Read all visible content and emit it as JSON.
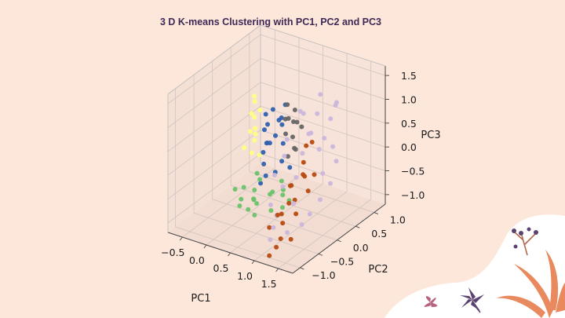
{
  "slide": {
    "title": "3 D K-means Clustering with PC1, PC2 and PC3",
    "background": "#fde6da",
    "title_color": "#3f2a56"
  },
  "chart_data": {
    "type": "scatter",
    "projection": "3d",
    "title": "",
    "xlabel": "PC1",
    "ylabel": "PC2",
    "zlabel": "PC3",
    "xticks": [
      "−0.5",
      "0.0",
      "0.5",
      "1.0",
      "1.5"
    ],
    "yticks": [
      "−1.0",
      "−0.5",
      "0.0",
      "0.5",
      "1.0"
    ],
    "zticks": [
      "−1.0",
      "−0.5",
      "0.0",
      "0.5",
      "1.0",
      "1.5"
    ],
    "xlim": [
      -0.8,
      1.8
    ],
    "ylim": [
      -1.2,
      1.3
    ],
    "zlim": [
      -1.2,
      1.7
    ],
    "grid": true,
    "legend": "none",
    "series": [
      {
        "color": "#ffff80",
        "points": [
          [
            -0.6,
            0.8,
            0.2
          ],
          [
            -0.55,
            0.7,
            -0.1
          ],
          [
            -0.62,
            0.9,
            0.5
          ],
          [
            -0.5,
            0.75,
            -0.3
          ],
          [
            -0.58,
            0.85,
            0.1
          ],
          [
            -0.48,
            0.65,
            -0.5
          ],
          [
            -0.65,
            0.95,
            0.35
          ],
          [
            -0.52,
            0.8,
            -0.2
          ],
          [
            -0.45,
            0.7,
            0.0
          ],
          [
            -0.6,
            0.6,
            -0.4
          ],
          [
            -0.5,
            0.9,
            0.25
          ],
          [
            -0.42,
            0.78,
            -0.6
          ]
        ]
      },
      {
        "color": "#2f62b0",
        "points": [
          [
            0.0,
            0.6,
            0.6
          ],
          [
            0.1,
            0.7,
            0.4
          ],
          [
            -0.1,
            0.5,
            0.2
          ],
          [
            0.05,
            0.45,
            0.0
          ],
          [
            0.15,
            0.65,
            0.3
          ],
          [
            -0.05,
            0.4,
            -0.2
          ],
          [
            0.2,
            0.5,
            0.5
          ],
          [
            0.1,
            0.3,
            0.1
          ],
          [
            0.0,
            0.35,
            -0.4
          ],
          [
            0.25,
            0.55,
            0.0
          ],
          [
            -0.15,
            0.6,
            0.45
          ],
          [
            0.3,
            0.45,
            -0.3
          ],
          [
            0.12,
            0.25,
            -0.55
          ],
          [
            0.22,
            0.38,
            0.25
          ],
          [
            -0.08,
            0.55,
            -0.1
          ],
          [
            0.35,
            0.6,
            -0.5
          ],
          [
            0.05,
            0.2,
            -0.7
          ],
          [
            0.18,
            0.7,
            0.7
          ],
          [
            0.28,
            0.3,
            -0.45
          ],
          [
            -0.02,
            0.48,
            0.35
          ]
        ]
      },
      {
        "color": "#666666",
        "points": [
          [
            0.3,
            0.6,
            0.8
          ],
          [
            0.4,
            0.5,
            0.6
          ],
          [
            0.35,
            0.7,
            0.4
          ],
          [
            0.45,
            0.55,
            0.2
          ],
          [
            0.5,
            0.6,
            0.5
          ],
          [
            0.38,
            0.45,
            0.3
          ],
          [
            0.55,
            0.5,
            0.0
          ],
          [
            0.42,
            0.65,
            0.7
          ],
          [
            0.6,
            0.4,
            0.1
          ],
          [
            0.48,
            0.38,
            -0.1
          ],
          [
            0.32,
            0.52,
            0.55
          ],
          [
            0.52,
            0.7,
            0.35
          ]
        ]
      },
      {
        "color": "#6cc26c",
        "points": [
          [
            -0.3,
            0.2,
            -0.9
          ],
          [
            -0.2,
            0.0,
            -1.0
          ],
          [
            0.0,
            0.1,
            -0.8
          ],
          [
            0.2,
            -0.1,
            -0.9
          ],
          [
            0.4,
            0.0,
            -0.7
          ],
          [
            0.1,
            -0.2,
            -1.0
          ],
          [
            -0.1,
            0.3,
            -0.6
          ],
          [
            0.3,
            0.2,
            -0.8
          ],
          [
            0.5,
            -0.1,
            -0.95
          ],
          [
            0.6,
            0.1,
            -0.6
          ],
          [
            0.0,
            -0.3,
            -0.9
          ],
          [
            0.25,
            -0.25,
            -0.7
          ],
          [
            -0.25,
            -0.1,
            -0.75
          ],
          [
            0.45,
            0.25,
            -0.55
          ],
          [
            0.7,
            -0.05,
            -0.85
          ],
          [
            0.15,
            0.05,
            -0.5
          ],
          [
            0.35,
            -0.35,
            -0.95
          ],
          [
            -0.05,
            0.15,
            -1.05
          ],
          [
            0.55,
            0.15,
            -0.75
          ],
          [
            0.8,
            0.0,
            -0.7
          ]
        ]
      },
      {
        "color": "#c9b6dc",
        "points": [
          [
            0.8,
            0.3,
            1.0
          ],
          [
            1.0,
            0.5,
            0.9
          ],
          [
            1.1,
            0.2,
            0.7
          ],
          [
            0.9,
            0.4,
            0.5
          ],
          [
            1.2,
            0.6,
            0.8
          ],
          [
            1.0,
            0.1,
            0.3
          ],
          [
            1.3,
            0.3,
            0.6
          ],
          [
            0.7,
            0.0,
            0.2
          ],
          [
            1.1,
            -0.2,
            0.0
          ],
          [
            1.4,
            0.4,
            0.4
          ],
          [
            0.9,
            -0.3,
            -0.2
          ],
          [
            1.2,
            -0.4,
            -0.4
          ],
          [
            1.5,
            0.0,
            0.1
          ],
          [
            1.0,
            -0.6,
            -0.6
          ],
          [
            1.3,
            -0.7,
            -0.8
          ],
          [
            1.6,
            -0.2,
            -0.3
          ],
          [
            0.8,
            -0.5,
            -0.5
          ],
          [
            1.1,
            -0.9,
            -0.9
          ],
          [
            1.45,
            -0.5,
            -0.7
          ],
          [
            1.25,
            0.7,
            1.1
          ],
          [
            0.95,
            0.65,
            1.2
          ],
          [
            0.6,
            0.2,
            0.4
          ],
          [
            0.65,
            -0.2,
            -0.1
          ],
          [
            1.55,
            0.3,
            0.2
          ],
          [
            1.35,
            0.1,
            0.5
          ],
          [
            1.05,
            -0.75,
            -0.75
          ],
          [
            0.75,
            0.45,
            0.85
          ],
          [
            1.15,
            0.8,
            0.95
          ],
          [
            1.5,
            -0.35,
            -0.55
          ],
          [
            1.62,
            0.05,
            -0.1
          ]
        ]
      },
      {
        "color": "#b84a10",
        "points": [
          [
            1.0,
            0.2,
            0.4
          ],
          [
            1.1,
            0.0,
            0.2
          ],
          [
            1.2,
            -0.1,
            0.0
          ],
          [
            1.0,
            -0.2,
            -0.2
          ],
          [
            1.15,
            -0.3,
            -0.4
          ],
          [
            1.25,
            -0.4,
            -0.6
          ],
          [
            1.05,
            -0.5,
            -0.8
          ],
          [
            1.3,
            -0.6,
            -1.0
          ],
          [
            1.1,
            -0.7,
            -0.5
          ],
          [
            1.2,
            0.1,
            0.6
          ],
          [
            0.9,
            -0.1,
            -0.3
          ],
          [
            1.35,
            -0.2,
            -0.2
          ],
          [
            1.15,
            -0.8,
            -1.1
          ],
          [
            0.95,
            -0.4,
            -0.7
          ],
          [
            1.22,
            -0.55,
            -0.3
          ],
          [
            1.05,
            0.05,
            -0.1
          ],
          [
            1.28,
            -0.85,
            -0.85
          ],
          [
            0.85,
            -0.6,
            -0.9
          ],
          [
            1.4,
            -0.1,
            0.1
          ],
          [
            1.12,
            -0.95,
            -1.2
          ]
        ]
      }
    ]
  },
  "decor": {
    "blob_color": "#ffffff",
    "flower_dark": "#5b4270",
    "flower_orange": "#e8895e",
    "flower_pink": "#b7627e"
  }
}
